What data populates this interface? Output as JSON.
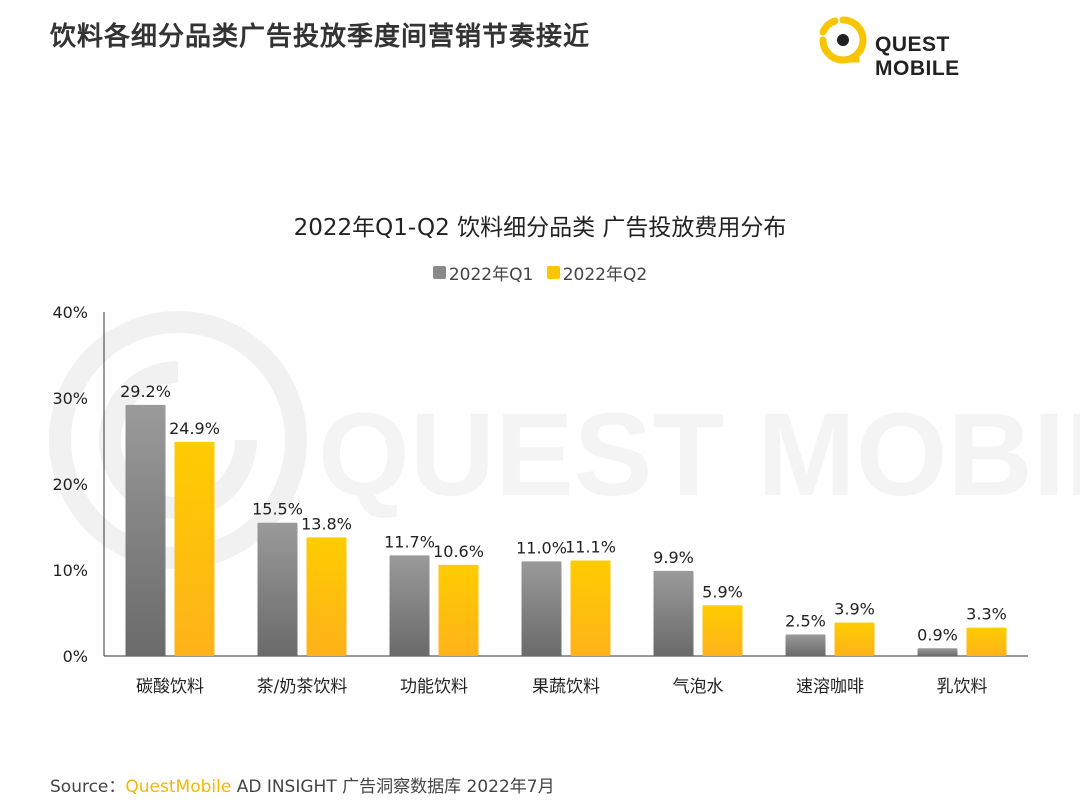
{
  "header": {
    "title": "饮料各细分品类广告投放季度间营销节奏接近",
    "logo_text": "QUEST MOBILE",
    "watermark_text": "QUEST MOBILE"
  },
  "colors": {
    "q1_top": "#9a9a9a",
    "q1_bottom": "#6a6a6a",
    "q2_top": "#ffcc00",
    "q2_bottom": "#ffb21a",
    "logo_yellow": "#f7c600"
  },
  "chart_data": {
    "type": "bar",
    "title": "2022年Q1-Q2 饮料细分品类 广告投放费用分布",
    "categories": [
      "碳酸饮料",
      "茶/奶茶饮料",
      "功能饮料",
      "果蔬饮料",
      "气泡水",
      "速溶咖啡",
      "乳饮料"
    ],
    "series": [
      {
        "name": "2022年Q1",
        "values": [
          29.2,
          15.5,
          11.7,
          11.0,
          9.9,
          2.5,
          0.9
        ],
        "labels": [
          "29.2%",
          "15.5%",
          "11.7%",
          "11.0%",
          "9.9%",
          "2.5%",
          "0.9%"
        ]
      },
      {
        "name": "2022年Q2",
        "values": [
          24.9,
          13.8,
          10.6,
          11.1,
          5.9,
          3.9,
          3.3
        ],
        "labels": [
          "24.9%",
          "13.8%",
          "10.6%",
          "11.1%",
          "5.9%",
          "3.9%",
          "3.3%"
        ]
      }
    ],
    "ylim": [
      0,
      40
    ],
    "yticks": [
      0,
      10,
      20,
      30,
      40
    ],
    "ytick_labels": [
      "0%",
      "10%",
      "20%",
      "30%",
      "40%"
    ],
    "xlabel": "",
    "ylabel": "",
    "legend_position": "top-center"
  },
  "source": {
    "prefix": "Source：",
    "brand": "QuestMobile",
    "rest": " AD INSIGHT 广告洞察数据库 2022年7月"
  }
}
